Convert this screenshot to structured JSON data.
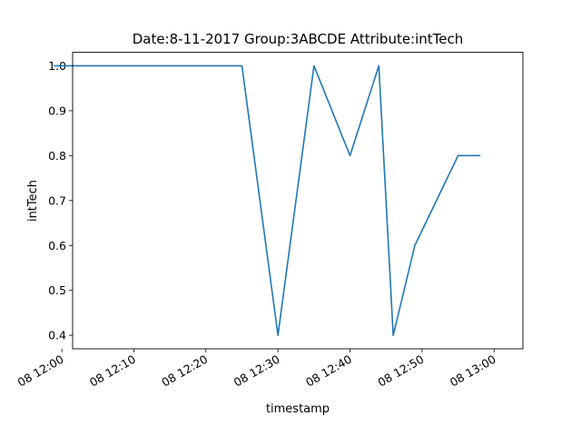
{
  "chart_data": {
    "type": "line",
    "title": "Date:8-11-2017  Group:3ABCDE Attribute:intTech",
    "xlabel": "timestamp",
    "ylabel": "intTech",
    "x_tick_labels": [
      "08 12:00",
      "08 12:10",
      "08 12:20",
      "08 12:30",
      "08 12:40",
      "08 12:50",
      "08 13:00"
    ],
    "y_tick_labels": [
      "0.4",
      "0.5",
      "0.6",
      "0.7",
      "0.8",
      "0.9",
      "1.0"
    ],
    "y_ticks": [
      0.4,
      0.5,
      0.6,
      0.7,
      0.8,
      0.9,
      1.0
    ],
    "xlim": [
      "12:01:30",
      "13:04:00"
    ],
    "ylim": [
      0.37,
      1.03
    ],
    "grid": false,
    "line_color": "#1f77b4",
    "series": [
      {
        "x": [
          "11:59",
          "12:25",
          "12:30",
          "12:35",
          "12:40",
          "12:44",
          "12:46",
          "12:49",
          "12:55",
          "12:58"
        ],
        "y": [
          1.0,
          1.0,
          0.4,
          1.0,
          0.8,
          1.0,
          0.4,
          0.6,
          0.8,
          0.8
        ]
      }
    ]
  }
}
